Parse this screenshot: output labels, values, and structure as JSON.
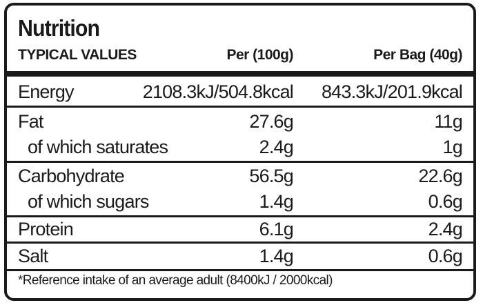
{
  "title": "Nutrition",
  "header": {
    "typical_values": "TYPICAL VALUES",
    "per_100g": "Per (100g)",
    "per_bag": "Per Bag (40g)"
  },
  "rows": [
    {
      "name": "Energy",
      "per_100g": "2108.3kJ/504.8kcal",
      "per_bag": "843.3kJ/201.9kcal"
    },
    {
      "name": "Fat",
      "per_100g": "27.6g",
      "per_bag": "11g"
    },
    {
      "name": "of which saturates",
      "per_100g": "2.4g",
      "per_bag": "1g"
    },
    {
      "name": "Carbohydrate",
      "per_100g": "56.5g",
      "per_bag": "22.6g"
    },
    {
      "name": "of which sugars",
      "per_100g": "1.4g",
      "per_bag": "0.6g"
    },
    {
      "name": "Protein",
      "per_100g": "6.1g",
      "per_bag": "2.4g"
    },
    {
      "name": "Salt",
      "per_100g": "1.4g",
      "per_bag": "0.6g"
    }
  ],
  "footnote": "*Reference intake of an average adult (8400kJ / 2000kcal)"
}
